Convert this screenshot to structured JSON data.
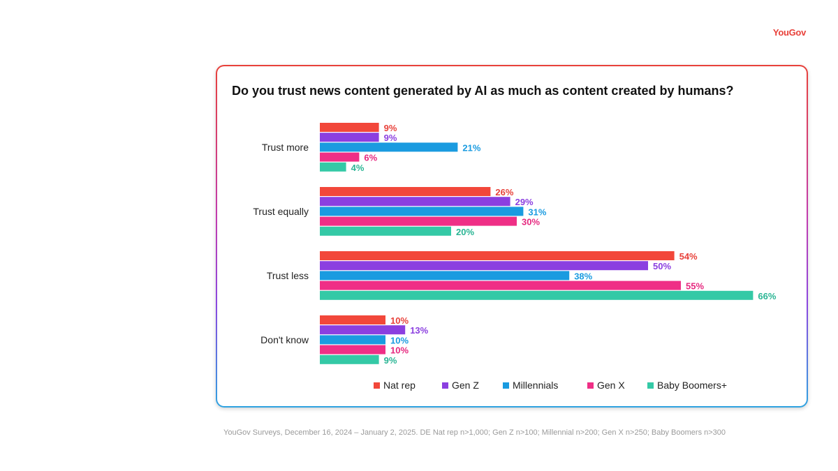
{
  "brand": {
    "logo_text": "YouGov",
    "logo_color": "#e8413a"
  },
  "footnote": "YouGov Surveys, December 16, 2024 – January 2, 2025. DE Nat rep n>1,000; Gen Z n>100; Millennial n>200; Gen X n>250; Baby Boomers n>300",
  "chart_data": {
    "type": "bar",
    "orientation": "horizontal",
    "title": "Do you trust news content generated by AI as much as content created by humans?",
    "categories": [
      "Trust more",
      "Trust equally",
      "Trust less",
      "Don't know"
    ],
    "series": [
      {
        "name": "Nat rep",
        "color": "#f2473a",
        "label_color": "#e8413a",
        "values": [
          9,
          26,
          54,
          10
        ]
      },
      {
        "name": "Gen Z",
        "color": "#8b3fe0",
        "label_color": "#8b3fe0",
        "values": [
          9,
          29,
          50,
          13
        ]
      },
      {
        "name": "Millennials",
        "color": "#1a9be0",
        "label_color": "#1a9be0",
        "values": [
          21,
          31,
          38,
          10
        ]
      },
      {
        "name": "Gen X",
        "color": "#ef2f86",
        "label_color": "#e6287f",
        "values": [
          6,
          30,
          55,
          10
        ]
      },
      {
        "name": "Baby Boomers+",
        "color": "#34c9a6",
        "label_color": "#2ab594",
        "values": [
          4,
          20,
          66,
          9
        ]
      }
    ],
    "value_suffix": "%",
    "xlim": [
      0,
      66
    ],
    "legend_position": "bottom",
    "grid": false
  }
}
